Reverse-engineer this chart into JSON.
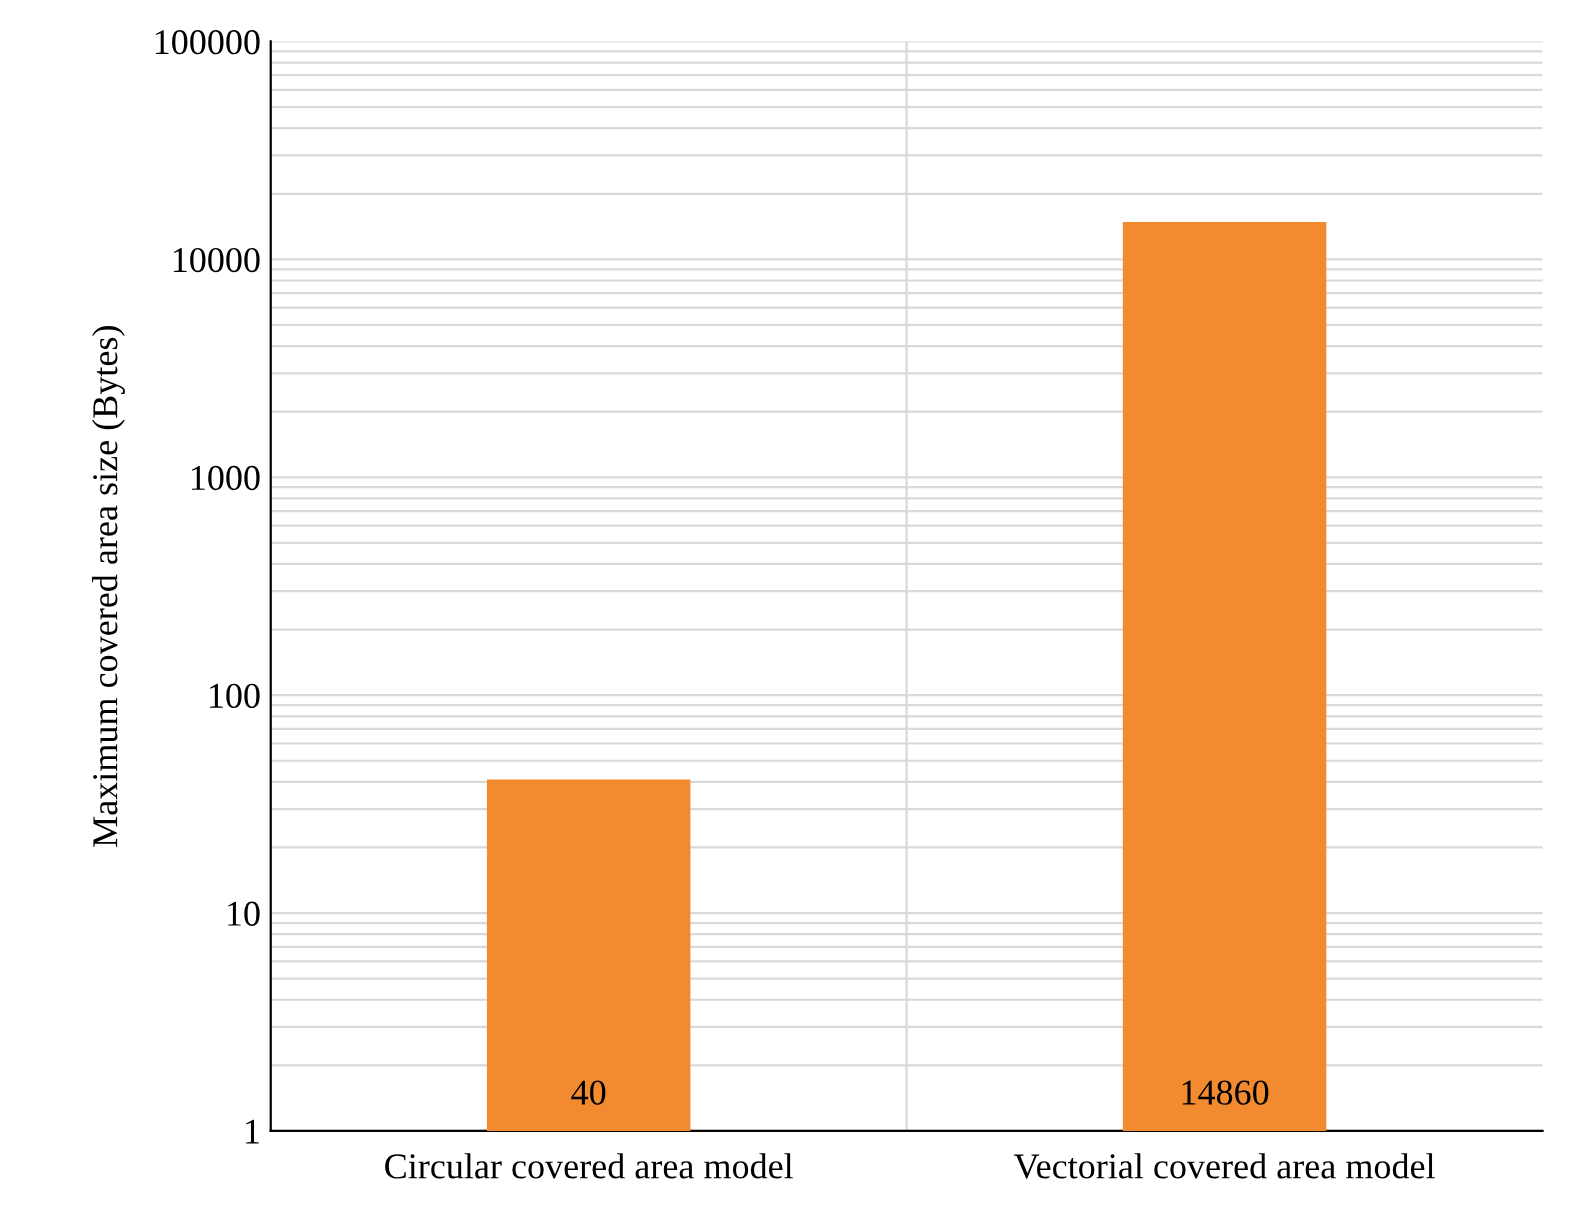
{
  "chart_data": {
    "type": "bar",
    "ylabel": "Maximum covered area size (Bytes)",
    "categories": [
      "Circular covered area model",
      "Vectorial covered area model"
    ],
    "values": [
      40,
      14860
    ],
    "color": "#f28a30",
    "log": true,
    "ylim": [
      1,
      100000
    ],
    "yticks": [
      1,
      10,
      100,
      1000,
      10000,
      100000
    ],
    "grid": true,
    "data_labels": true
  }
}
